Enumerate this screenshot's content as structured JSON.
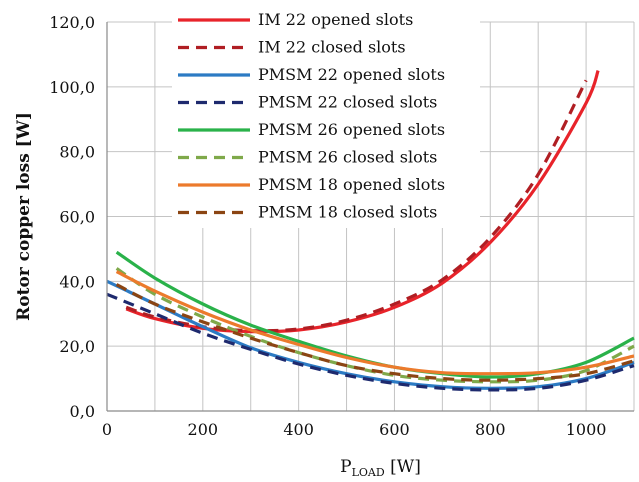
{
  "chart_data": {
    "type": "line",
    "title": "",
    "xlabel": {
      "main": "P",
      "sub": "LOAD",
      "unit": " [W]"
    },
    "ylabel": "Rotor copper loss [W]",
    "xlim": [
      0,
      1100
    ],
    "ylim": [
      0,
      120
    ],
    "x_ticks": [
      0,
      200,
      400,
      600,
      800,
      1000
    ],
    "x_tick_labels": [
      "0",
      "200",
      "400",
      "600",
      "800",
      "1000"
    ],
    "y_ticks": [
      0,
      20,
      40,
      60,
      80,
      100,
      120
    ],
    "y_tick_labels": [
      "0,0",
      "20,0",
      "40,0",
      "60,0",
      "80,0",
      "100,0",
      "120,0"
    ],
    "grid": true,
    "legend_position": "top-center",
    "series": [
      {
        "name": "IM 22 opened slots",
        "color": "#e8232a",
        "dash": "solid",
        "x": [
          40,
          100,
          200,
          300,
          400,
          500,
          600,
          700,
          800,
          900,
          1000,
          1025
        ],
        "y": [
          31.5,
          28.5,
          25.5,
          24.5,
          25.0,
          27.5,
          32.0,
          39.5,
          52.0,
          70.0,
          95.0,
          105.0
        ]
      },
      {
        "name": "IM 22 closed slots",
        "color": "#b01e23",
        "dash": "dashed",
        "x": [
          40,
          100,
          200,
          300,
          400,
          500,
          600,
          700,
          800,
          900,
          1000
        ],
        "y": [
          32.0,
          29.0,
          26.0,
          24.8,
          25.3,
          28.0,
          33.0,
          40.5,
          53.5,
          73.0,
          102.0
        ]
      },
      {
        "name": "PMSM 22 opened slots",
        "color": "#2c7bc4",
        "dash": "solid",
        "x": [
          0,
          100,
          200,
          300,
          400,
          500,
          600,
          700,
          800,
          900,
          1000,
          1100
        ],
        "y": [
          40.0,
          33.0,
          26.0,
          19.5,
          15.0,
          11.5,
          9.0,
          7.5,
          7.0,
          7.5,
          10.0,
          15.0
        ]
      },
      {
        "name": "PMSM 22 closed slots",
        "color": "#1e2a6e",
        "dash": "dashed",
        "x": [
          0,
          100,
          200,
          300,
          400,
          500,
          600,
          700,
          800,
          900,
          1000,
          1100
        ],
        "y": [
          36.0,
          30.0,
          24.0,
          19.0,
          14.5,
          11.0,
          8.5,
          7.0,
          6.5,
          7.0,
          9.5,
          14.0
        ]
      },
      {
        "name": "PMSM 26 opened slots",
        "color": "#2ab24a",
        "dash": "solid",
        "x": [
          20,
          100,
          200,
          300,
          400,
          500,
          600,
          700,
          800,
          900,
          1000,
          1100
        ],
        "y": [
          49.0,
          41.0,
          33.0,
          26.5,
          21.5,
          17.0,
          13.5,
          11.5,
          10.5,
          11.5,
          15.0,
          22.5
        ]
      },
      {
        "name": "PMSM 26 closed slots",
        "color": "#7fa94a",
        "dash": "dashed",
        "x": [
          20,
          100,
          200,
          300,
          400,
          500,
          600,
          700,
          800,
          900,
          1000,
          1100
        ],
        "y": [
          44.0,
          36.0,
          29.0,
          23.0,
          18.0,
          14.0,
          11.0,
          9.5,
          9.0,
          9.5,
          12.5,
          20.0
        ]
      },
      {
        "name": "PMSM 18 opened slots",
        "color": "#ec7a2c",
        "dash": "solid",
        "x": [
          20,
          100,
          200,
          300,
          400,
          500,
          600,
          700,
          800,
          900,
          1000,
          1100
        ],
        "y": [
          43.0,
          37.0,
          30.5,
          25.0,
          20.5,
          16.5,
          13.5,
          11.8,
          11.5,
          11.8,
          13.5,
          17.0
        ]
      },
      {
        "name": "PMSM 18 closed slots",
        "color": "#8b4513",
        "dash": "dashed",
        "x": [
          20,
          100,
          200,
          300,
          400,
          500,
          600,
          700,
          800,
          900,
          1000,
          1100
        ],
        "y": [
          39.0,
          33.0,
          27.5,
          22.5,
          18.0,
          14.0,
          11.5,
          10.0,
          9.5,
          10.0,
          11.5,
          15.5
        ]
      }
    ]
  }
}
